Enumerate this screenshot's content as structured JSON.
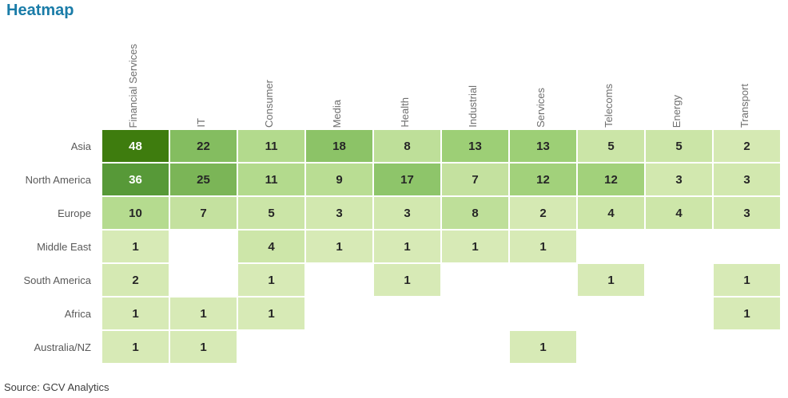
{
  "title": "Heatmap",
  "source_note": "Source: GCV Analytics",
  "colors": {
    "title_text": "#1a7ca8",
    "column_header_text": "#6f6f6f",
    "row_label_text": "#595959",
    "cell_text_dark": "#262626",
    "cell_text_light": "#ffffff",
    "background": "#ffffff"
  },
  "chart_data": {
    "type": "heatmap",
    "title": "Heatmap",
    "columns": [
      "Financial Services",
      "IT",
      "Consumer",
      "Media",
      "Health",
      "Industrial",
      "Services",
      "Telecoms",
      "Energy",
      "Transport"
    ],
    "rows": [
      "Asia",
      "North America",
      "Europe",
      "Middle East",
      "South America",
      "Africa",
      "Australia/NZ"
    ],
    "values": [
      [
        48,
        22,
        11,
        18,
        8,
        13,
        13,
        5,
        5,
        2
      ],
      [
        36,
        25,
        11,
        9,
        17,
        7,
        12,
        12,
        3,
        3
      ],
      [
        10,
        7,
        5,
        3,
        3,
        8,
        2,
        4,
        4,
        3
      ],
      [
        1,
        null,
        4,
        1,
        1,
        1,
        1,
        null,
        null,
        null
      ],
      [
        2,
        null,
        1,
        null,
        1,
        null,
        null,
        1,
        null,
        1
      ],
      [
        1,
        1,
        1,
        null,
        null,
        null,
        null,
        null,
        null,
        1
      ],
      [
        1,
        1,
        null,
        null,
        null,
        null,
        1,
        null,
        null,
        null
      ]
    ],
    "value_colors": {
      "48": "#3e7c0e",
      "36": "#579938",
      "25": "#7bb557",
      "22": "#84bd60",
      "18": "#8cc367",
      "17": "#8ec56a",
      "13": "#9dcf76",
      "12": "#a2d17b",
      "11": "#b3da8d",
      "10": "#b5db8f",
      "9": "#b9dd93",
      "8": "#bedf99",
      "7": "#c4e19f",
      "5": "#cbe5a7",
      "4": "#cde6a9",
      "3": "#d2e8af",
      "2": "#d5e9b3",
      "1": "#d7eab6"
    },
    "white_text_values": [
      48,
      36
    ],
    "legend": "none",
    "source": "GCV Analytics"
  }
}
